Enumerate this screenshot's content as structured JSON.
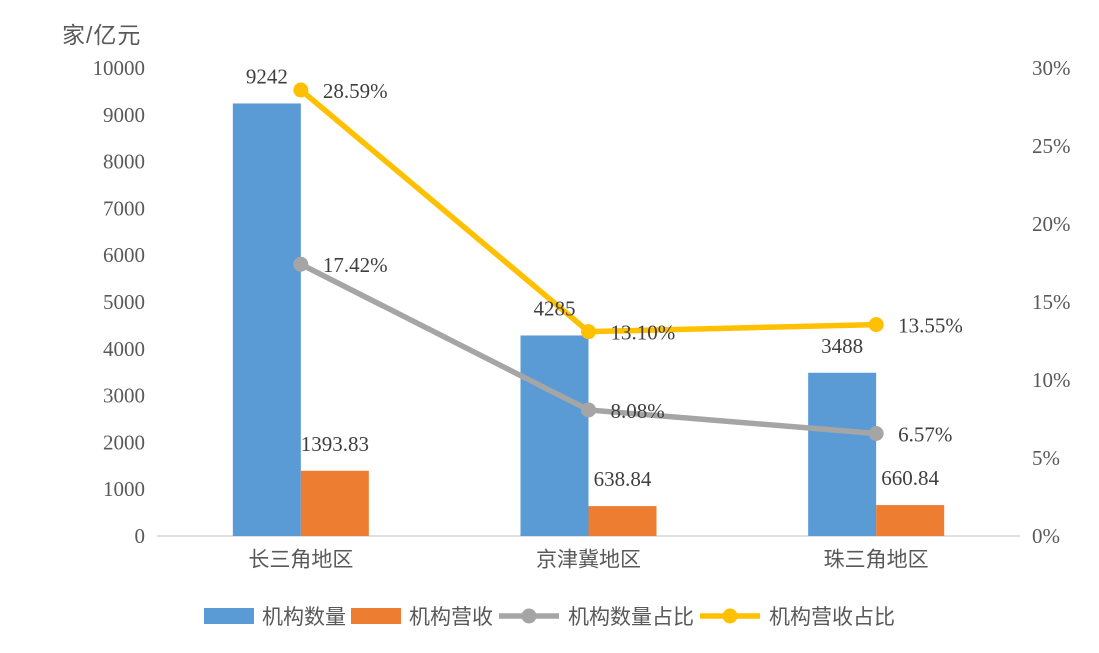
{
  "chart_data": {
    "type": "combo-bar-line",
    "axis_title": "家/亿元",
    "categories": [
      "长三角地区",
      "京津冀地区",
      "珠三角地区"
    ],
    "left_axis": {
      "min": 0,
      "max": 10000,
      "tick_step": 1000,
      "ticks": [
        "10000",
        "9000",
        "8000",
        "7000",
        "6000",
        "5000",
        "4000",
        "3000",
        "2000",
        "1000",
        "0"
      ]
    },
    "right_axis": {
      "min": 0,
      "max": 30,
      "tick_step": 5,
      "ticks": [
        "30%",
        "25%",
        "20%",
        "15%",
        "10%",
        "5%",
        "0%"
      ]
    },
    "grid": false,
    "legend_position": "bottom",
    "axis_line_color": "#d6d6d6",
    "tick_label_color": "#595959",
    "data_label_color": "#3f3f3f",
    "series": [
      {
        "key": "org-count",
        "name": "机构数量",
        "type": "bar",
        "axis": "left",
        "color": "#5b9bd5",
        "values": [
          9242,
          4285,
          3488
        ],
        "labels": [
          "9242",
          "4285",
          "3488"
        ]
      },
      {
        "key": "org-revenue",
        "name": "机构营收",
        "type": "bar",
        "axis": "left",
        "color": "#ed7d31",
        "values": [
          1393.83,
          638.84,
          660.84
        ],
        "labels": [
          "1393.83",
          "638.84",
          "660.84"
        ]
      },
      {
        "key": "org-count-share",
        "name": "机构数量占比",
        "type": "line",
        "axis": "right",
        "color": "#a5a5a5",
        "values": [
          17.42,
          8.08,
          6.57
        ],
        "labels": [
          "17.42%",
          "8.08%",
          "6.57%"
        ]
      },
      {
        "key": "org-revenue-share",
        "name": "机构营收占比",
        "type": "line",
        "axis": "right",
        "color": "#ffc000",
        "values": [
          28.59,
          13.1,
          13.55
        ],
        "labels": [
          "28.59%",
          "13.10%",
          "13.55%"
        ]
      }
    ]
  }
}
